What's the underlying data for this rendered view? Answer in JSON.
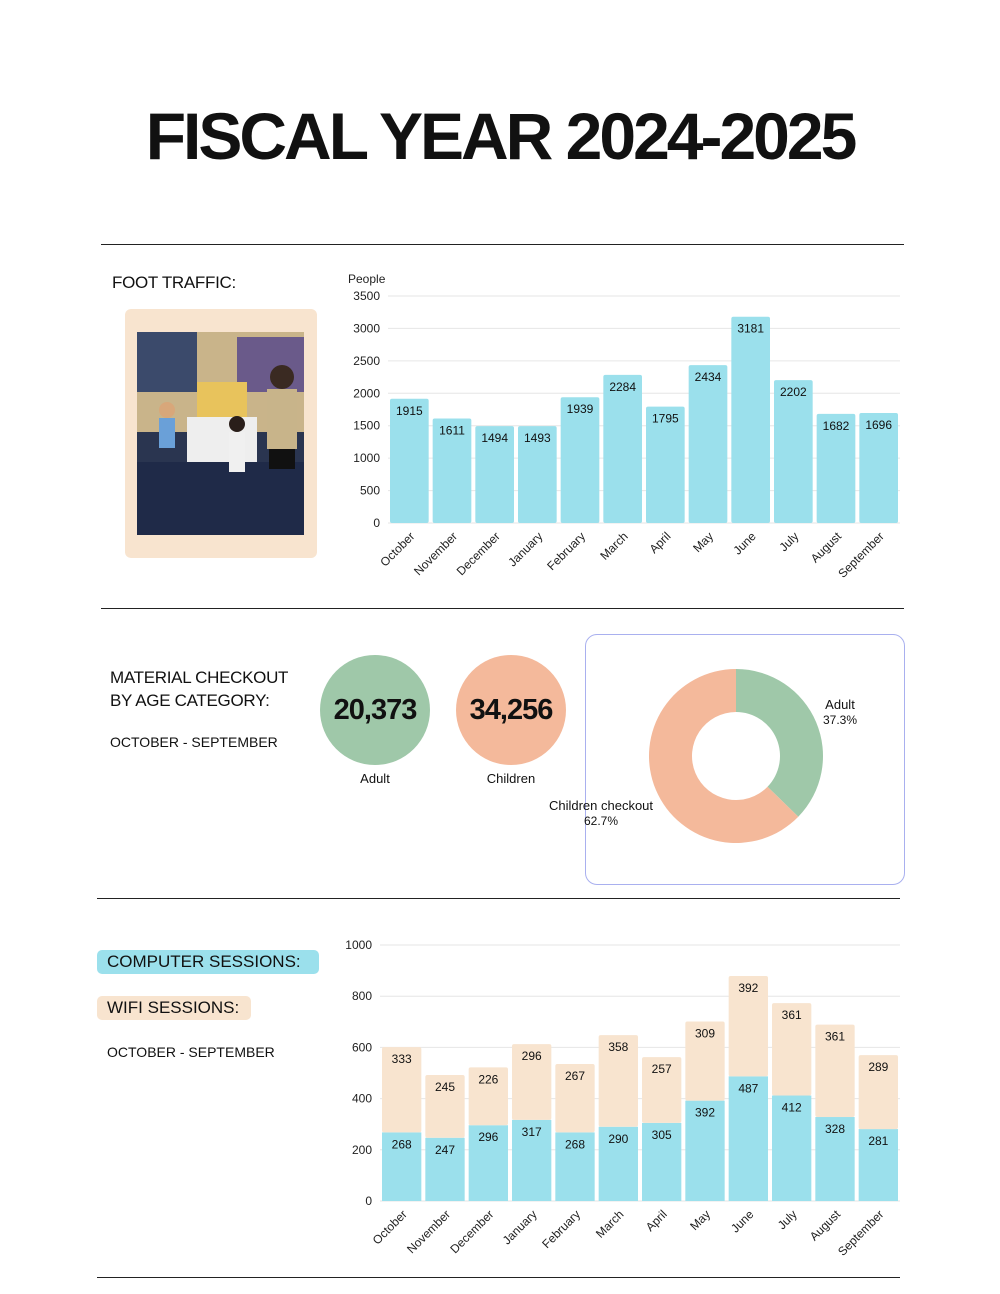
{
  "title": "FISCAL YEAR 2024-2025",
  "colors": {
    "cyan": "#9be0ec",
    "peach": "#f8e4cf",
    "green": "#9fc8a9",
    "salmon": "#f4b99b",
    "frame": "#f8e4cf",
    "donut_border": "#a9b0ef"
  },
  "foot_traffic": {
    "label": "FOOT TRAFFIC:",
    "photo_icon": "photo-of-children-at-library-table"
  },
  "checkout": {
    "label_line1": "MATERIAL CHECKOUT",
    "label_line2": "BY AGE CATEGORY:",
    "period": "OCTOBER - SEPTEMBER",
    "adult_value": "20,373",
    "adult_label": "Adult",
    "children_value": "34,256",
    "children_label": "Children"
  },
  "sessions": {
    "computer_label": "COMPUTER SESSIONS:",
    "wifi_label": "WIFI SESSIONS:",
    "period": "OCTOBER - SEPTEMBER"
  },
  "chart_data": [
    {
      "type": "bar",
      "ylabel": "People",
      "ylim": [
        0,
        3500
      ],
      "yticks": [
        "0",
        "500",
        "1000",
        "1500",
        "2000",
        "2500",
        "3000",
        "3500"
      ],
      "grid": true,
      "categories": [
        "October",
        "November",
        "December",
        "January",
        "February",
        "March",
        "April",
        "May",
        "June",
        "July",
        "August",
        "September"
      ],
      "values": [
        1915,
        1611,
        1494,
        1493,
        1939,
        2284,
        1795,
        2434,
        3181,
        2202,
        1682,
        1696
      ],
      "color": "#9be0ec"
    },
    {
      "type": "pie",
      "donut": true,
      "slices": [
        {
          "label": "Adult",
          "pct_label": "37.3%",
          "value": 37.3,
          "color": "#9fc8a9"
        },
        {
          "label": "Children checkout",
          "pct_label": "62.7%",
          "value": 62.7,
          "color": "#f4b99b"
        }
      ]
    },
    {
      "type": "bar",
      "stacked": true,
      "ylim": [
        0,
        1000
      ],
      "yticks": [
        "0",
        "200",
        "400",
        "600",
        "800",
        "1000"
      ],
      "grid": true,
      "categories": [
        "October",
        "November",
        "December",
        "January",
        "February",
        "March",
        "April",
        "May",
        "June",
        "July",
        "August",
        "September"
      ],
      "series": [
        {
          "name": "COMPUTER SESSIONS:",
          "values": [
            268,
            247,
            296,
            317,
            268,
            290,
            305,
            392,
            487,
            412,
            328,
            281
          ],
          "color": "#9be0ec"
        },
        {
          "name": "WIFI SESSIONS:",
          "values": [
            333,
            245,
            226,
            296,
            267,
            358,
            257,
            309,
            392,
            361,
            361,
            289
          ],
          "color": "#f8e4cf"
        }
      ]
    }
  ]
}
